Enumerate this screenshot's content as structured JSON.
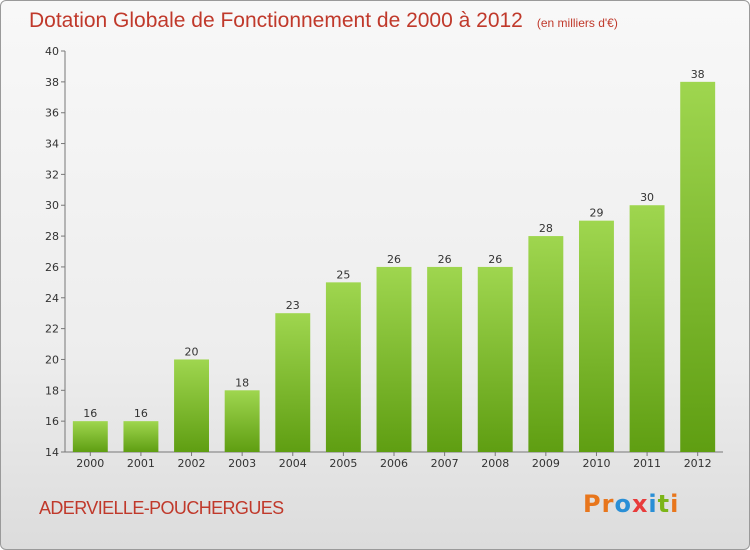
{
  "header": {
    "title": "Dotation Globale de Fonctionnement de 2000 à 2012",
    "subtitle": "(en milliers d'€)"
  },
  "footer": {
    "commune": "ADERVIELLE-POUCHERGUES",
    "logo": [
      "P",
      "r",
      "o",
      "x",
      "i",
      "t",
      "i"
    ]
  },
  "colors": {
    "title": "#c0392b",
    "bar_top": "#9fd64f",
    "bar_bottom": "#5f9e12",
    "logo_letters": [
      "#e8761c",
      "#e8761c",
      "#2a8fd6",
      "#e83b3b",
      "#2a8fd6",
      "#7cb518",
      "#e8761c"
    ]
  },
  "chart_data": {
    "type": "bar",
    "title": "Dotation Globale de Fonctionnement de 2000 à 2012",
    "subtitle": "(en milliers d'€)",
    "categories": [
      "2000",
      "2001",
      "2002",
      "2003",
      "2004",
      "2005",
      "2006",
      "2007",
      "2008",
      "2009",
      "2010",
      "2011",
      "2012"
    ],
    "values": [
      16,
      16,
      20,
      18,
      23,
      25,
      26,
      26,
      26,
      28,
      29,
      30,
      38
    ],
    "data_labels": [
      "16",
      "16",
      "20",
      "18",
      "23",
      "25",
      "26",
      "26",
      "26",
      "28",
      "29",
      "30",
      "38"
    ],
    "ylim": [
      14,
      40
    ],
    "yticks": [
      "14",
      "16",
      "18",
      "20",
      "22",
      "24",
      "26",
      "28",
      "30",
      "32",
      "34",
      "36",
      "38",
      "40"
    ],
    "grid": false,
    "legend": "none"
  }
}
